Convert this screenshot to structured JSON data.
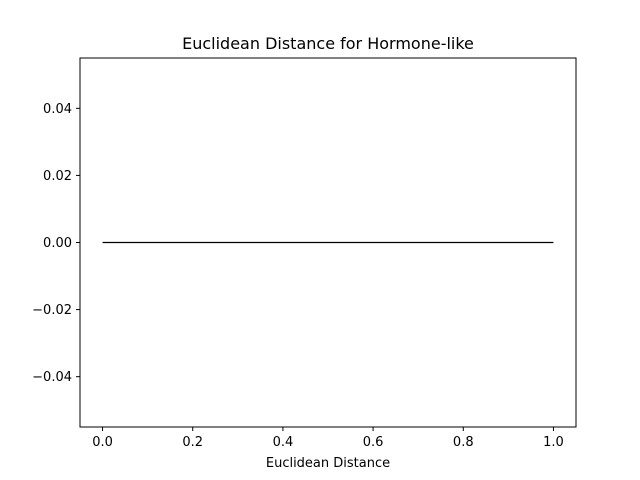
{
  "chart_data": {
    "type": "line",
    "title": "Euclidean Distance for Hormone-like",
    "xlabel": "Euclidean Distance",
    "ylabel": "",
    "xlim": [
      -0.05,
      1.05
    ],
    "ylim": [
      -0.055,
      0.055
    ],
    "xticks": [
      0.0,
      0.2,
      0.4,
      0.6,
      0.8,
      1.0
    ],
    "xtick_labels": [
      "0.0",
      "0.2",
      "0.4",
      "0.6",
      "0.8",
      "1.0"
    ],
    "yticks": [
      -0.04,
      -0.02,
      0.0,
      0.02,
      0.04
    ],
    "ytick_labels": [
      "−0.04",
      "−0.02",
      "0.00",
      "0.02",
      "0.04"
    ],
    "grid": false,
    "series": [
      {
        "color": "#000000",
        "x": [
          0.0,
          1.0
        ],
        "y": [
          0.0,
          0.0
        ]
      }
    ]
  }
}
